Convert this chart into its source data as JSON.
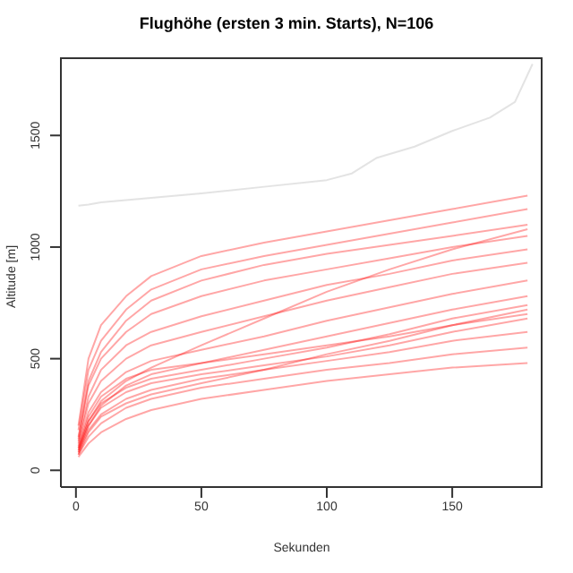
{
  "chart_data": {
    "type": "line",
    "title": "Flughöhe (ersten 3 min. Starts), N=106",
    "xlabel": "Sekunden",
    "ylabel": "Altitude [m]",
    "x": [
      1,
      5,
      10,
      20,
      30,
      50,
      75,
      100,
      125,
      150,
      180
    ],
    "xlim": [
      -6,
      186
    ],
    "xticks": [
      0,
      50,
      100,
      150
    ],
    "ylim": [
      -75,
      1850
    ],
    "yticks": [
      0,
      500,
      1000,
      1500
    ],
    "grid": false,
    "legend": false,
    "marker": "none",
    "line_style": "solid",
    "series": [
      {
        "color": "#b0b0b0",
        "x": [
          1,
          5,
          10,
          20,
          30,
          50,
          75,
          100,
          110,
          120,
          135,
          150,
          165,
          175,
          182
        ],
        "values": [
          1185,
          1190,
          1200,
          1210,
          1220,
          1240,
          1270,
          1300,
          1330,
          1400,
          1450,
          1520,
          1580,
          1650,
          1820
        ]
      },
      {
        "color": "#ff0000",
        "values": [
          60,
          120,
          170,
          230,
          270,
          320,
          360,
          400,
          430,
          460,
          480
        ]
      },
      {
        "color": "#ff0000",
        "values": [
          70,
          150,
          210,
          280,
          320,
          370,
          410,
          450,
          480,
          520,
          550
        ]
      },
      {
        "color": "#ff0000",
        "values": [
          80,
          180,
          250,
          320,
          360,
          410,
          450,
          490,
          530,
          580,
          620
        ]
      },
      {
        "color": "#ff0000",
        "values": [
          90,
          200,
          280,
          350,
          390,
          430,
          470,
          510,
          560,
          620,
          680
        ]
      },
      {
        "color": "#ff0000",
        "values": [
          100,
          220,
          300,
          370,
          410,
          450,
          500,
          550,
          610,
          680,
          740
        ]
      },
      {
        "color": "#ff0000",
        "values": [
          80,
          200,
          290,
          380,
          430,
          480,
          540,
          600,
          660,
          720,
          780
        ]
      },
      {
        "color": "#ff0000",
        "values": [
          110,
          260,
          350,
          440,
          490,
          540,
          600,
          670,
          730,
          790,
          850
        ]
      },
      {
        "color": "#ff0000",
        "values": [
          120,
          300,
          400,
          500,
          560,
          620,
          690,
          760,
          820,
          880,
          930
        ]
      },
      {
        "color": "#ff0000",
        "values": [
          130,
          330,
          450,
          560,
          620,
          690,
          760,
          830,
          880,
          940,
          990
        ]
      },
      {
        "color": "#ff0000",
        "values": [
          150,
          380,
          500,
          620,
          700,
          780,
          850,
          900,
          950,
          1000,
          1050
        ]
      },
      {
        "color": "#ff0000",
        "values": [
          140,
          400,
          530,
          670,
          760,
          850,
          920,
          970,
          1010,
          1050,
          1100
        ]
      },
      {
        "color": "#ff0000",
        "values": [
          180,
          450,
          580,
          720,
          810,
          900,
          960,
          1010,
          1060,
          1110,
          1170
        ]
      },
      {
        "color": "#ff0000",
        "values": [
          200,
          500,
          650,
          780,
          870,
          960,
          1020,
          1070,
          1120,
          1170,
          1230
        ]
      },
      {
        "color": "#ff0000",
        "values": [
          90,
          220,
          310,
          400,
          460,
          560,
          680,
          800,
          900,
          990,
          1080
        ]
      },
      {
        "color": "#ff0000",
        "values": [
          70,
          170,
          240,
          300,
          340,
          390,
          450,
          520,
          580,
          650,
          720
        ]
      },
      {
        "color": "#ff0000",
        "values": [
          100,
          240,
          330,
          410,
          450,
          480,
          520,
          560,
          600,
          650,
          700
        ]
      }
    ]
  }
}
